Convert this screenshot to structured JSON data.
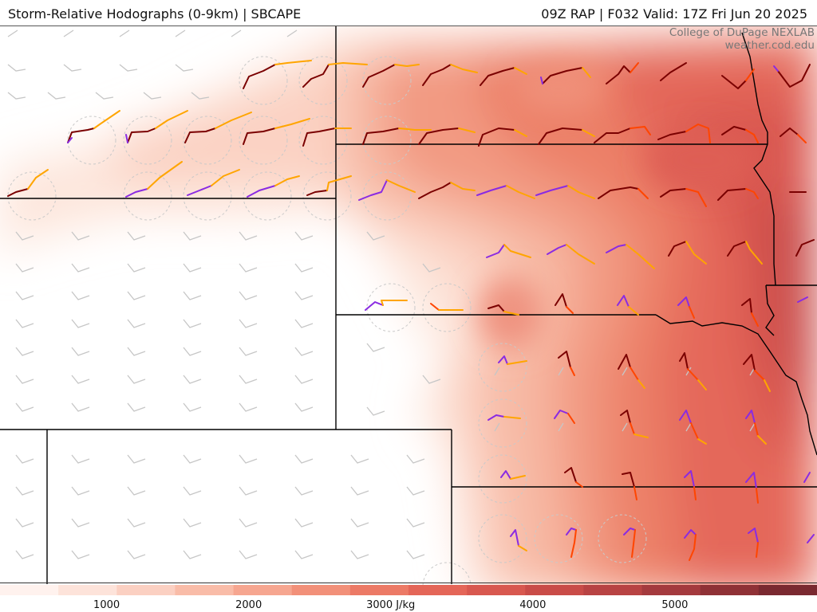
{
  "header": {
    "title_left": "Storm-Relative Hodographs (0-9km) | SBCAPE",
    "title_right": "09Z RAP | F032 Valid: 17Z Fri Jun 20 2025"
  },
  "credit": {
    "line1": "College of DuPage NEXLAB",
    "line2": "weather.cod.edu"
  },
  "colorbar": {
    "unit": "J/kg",
    "ticks": [
      {
        "value": 1000,
        "label": "1000"
      },
      {
        "value": 2000,
        "label": "2000"
      },
      {
        "value": 3000,
        "label": "3000 J/kg"
      },
      {
        "value": 4000,
        "label": "4000"
      },
      {
        "value": 5000,
        "label": "5000"
      }
    ],
    "min": 250,
    "max": 6000,
    "colors": [
      "#fff2ee",
      "#fde3da",
      "#fbd0c2",
      "#f9bca8",
      "#f6a690",
      "#f29079",
      "#ec7a66",
      "#e46658",
      "#d8584f",
      "#c94c48",
      "#b84343",
      "#a43a3e",
      "#8f3136",
      "#7a2930"
    ]
  },
  "map": {
    "layers": [
      "SBCAPE fill",
      "storm-relative hodographs",
      "wind barbs",
      "state borders"
    ],
    "hodograph_colors": {
      "low": "#7a0000",
      "mid": "#ff4500",
      "upper": "#ffa500",
      "storm_motion": "#8a2be2"
    }
  }
}
